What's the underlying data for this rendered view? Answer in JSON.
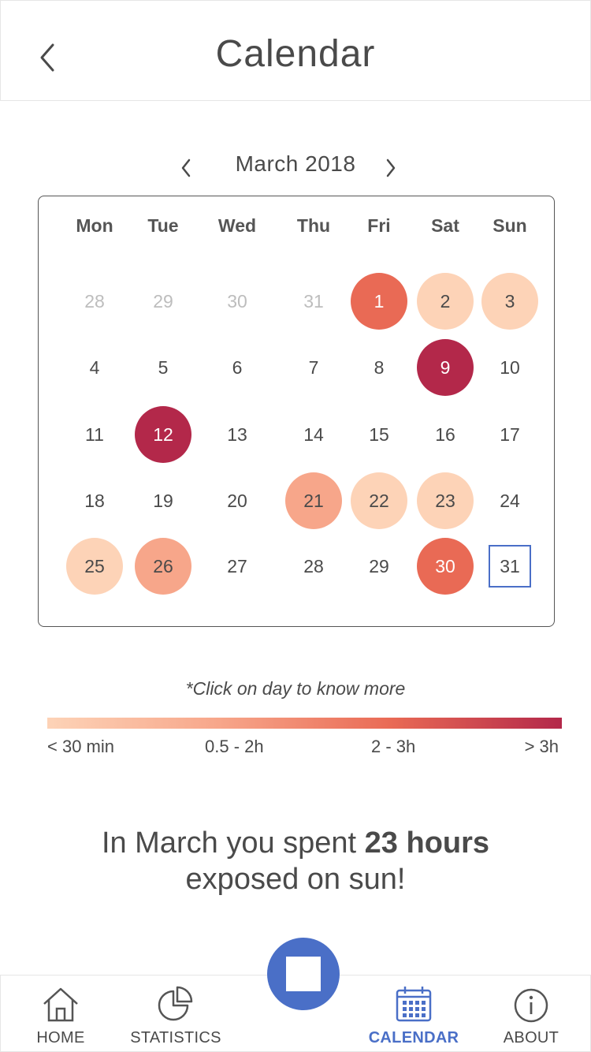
{
  "header": {
    "title": "Calendar"
  },
  "month_nav": {
    "label": "March 2018"
  },
  "calendar": {
    "weekdays": [
      "Mon",
      "Tue",
      "Wed",
      "Thu",
      "Fri",
      "Sat",
      "Sun"
    ],
    "weeks": [
      [
        {
          "d": "28",
          "muted": true
        },
        {
          "d": "29",
          "muted": true
        },
        {
          "d": "30",
          "muted": true
        },
        {
          "d": "31",
          "muted": true
        },
        {
          "d": "1",
          "level": 3
        },
        {
          "d": "2",
          "level": 1
        },
        {
          "d": "3",
          "level": 1
        }
      ],
      [
        {
          "d": "4"
        },
        {
          "d": "5"
        },
        {
          "d": "6"
        },
        {
          "d": "7"
        },
        {
          "d": "8"
        },
        {
          "d": "9",
          "level": 4
        },
        {
          "d": "10"
        }
      ],
      [
        {
          "d": "11"
        },
        {
          "d": "12",
          "level": 4
        },
        {
          "d": "13"
        },
        {
          "d": "14"
        },
        {
          "d": "15"
        },
        {
          "d": "16"
        },
        {
          "d": "17"
        }
      ],
      [
        {
          "d": "18"
        },
        {
          "d": "19"
        },
        {
          "d": "20"
        },
        {
          "d": "21",
          "level": 2
        },
        {
          "d": "22",
          "level": 1
        },
        {
          "d": "23",
          "level": 1
        },
        {
          "d": "24"
        }
      ],
      [
        {
          "d": "25",
          "level": 1
        },
        {
          "d": "26",
          "level": 2
        },
        {
          "d": "27"
        },
        {
          "d": "28"
        },
        {
          "d": "29"
        },
        {
          "d": "30",
          "level": 3
        },
        {
          "d": "31",
          "today": true
        }
      ]
    ]
  },
  "hint": "*Click on day to know more",
  "legend": {
    "colors": [
      "#fdd3b7",
      "#f7a68a",
      "#e96a55",
      "#b3284a"
    ],
    "labels": [
      "< 30 min",
      "0.5 - 2h",
      "2 - 3h",
      "> 3h"
    ]
  },
  "summary": {
    "prefix": "In March you spent ",
    "highlight": "23 hours",
    "suffix": "exposed on sun!"
  },
  "tabs": [
    {
      "label": "HOME",
      "icon": "home-icon",
      "active": false
    },
    {
      "label": "STATISTICS",
      "icon": "pie-chart-icon",
      "active": false
    },
    {
      "label": "CALENDAR",
      "icon": "calendar-icon",
      "active": true
    },
    {
      "label": "ABOUT",
      "icon": "info-icon",
      "active": false
    }
  ],
  "colors": {
    "accent": "#4a6fc7"
  }
}
